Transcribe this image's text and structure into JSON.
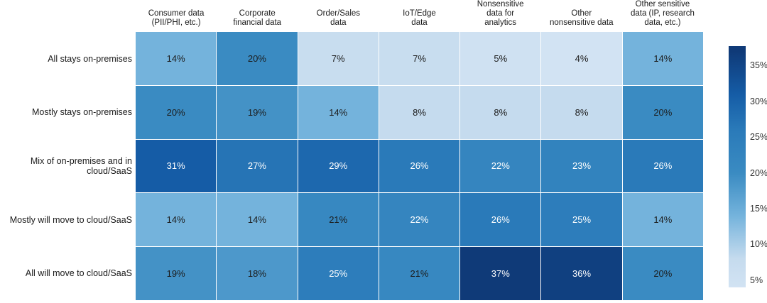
{
  "chart_data": {
    "type": "heatmap",
    "title": "",
    "unit": "%",
    "columns": [
      {
        "lines": [
          "Consumer data",
          "(PII/PHI, etc.)"
        ]
      },
      {
        "lines": [
          "Corporate",
          "financial data"
        ]
      },
      {
        "lines": [
          "Order/Sales",
          "data"
        ]
      },
      {
        "lines": [
          "IoT/Edge",
          "data"
        ]
      },
      {
        "lines": [
          "Nonsensitive",
          "data for",
          "analytics"
        ]
      },
      {
        "lines": [
          "Other",
          "nonsensitive data"
        ]
      },
      {
        "lines": [
          "Other sensitive",
          "data (IP, research",
          "data, etc.)"
        ]
      }
    ],
    "rows": [
      "All stays on-premises",
      "Mostly stays on-premises",
      "Mix of on-premises and in cloud/SaaS",
      "Mostly will move to cloud/SaaS",
      "All will move to cloud/SaaS"
    ],
    "values": [
      [
        14,
        20,
        7,
        7,
        5,
        4,
        14
      ],
      [
        20,
        19,
        14,
        8,
        8,
        8,
        20
      ],
      [
        31,
        27,
        29,
        26,
        22,
        23,
        26
      ],
      [
        14,
        14,
        21,
        22,
        26,
        25,
        14
      ],
      [
        19,
        18,
        25,
        21,
        37,
        36,
        20
      ]
    ],
    "color_scale": {
      "min": 4,
      "max": 37.7,
      "white_text_threshold": 22,
      "stops": [
        {
          "v": 4,
          "c": "#d2e3f3"
        },
        {
          "v": 8,
          "c": "#c5dbee"
        },
        {
          "v": 14,
          "c": "#74b3dc"
        },
        {
          "v": 20,
          "c": "#3a8bc2"
        },
        {
          "v": 26,
          "c": "#2a7ab9"
        },
        {
          "v": 31,
          "c": "#155ca6"
        },
        {
          "v": 37,
          "c": "#0f3a78"
        }
      ]
    },
    "colorbar": {
      "ticks": [
        {
          "value": 35,
          "label": "35%"
        },
        {
          "value": 30,
          "label": "30%"
        },
        {
          "value": 25,
          "label": "25%"
        },
        {
          "value": 20,
          "label": "20%"
        },
        {
          "value": 15,
          "label": "15%"
        },
        {
          "value": 10,
          "label": "10%"
        },
        {
          "value": 5,
          "label": "5%"
        }
      ],
      "legend_position": "right"
    },
    "grid": false
  }
}
